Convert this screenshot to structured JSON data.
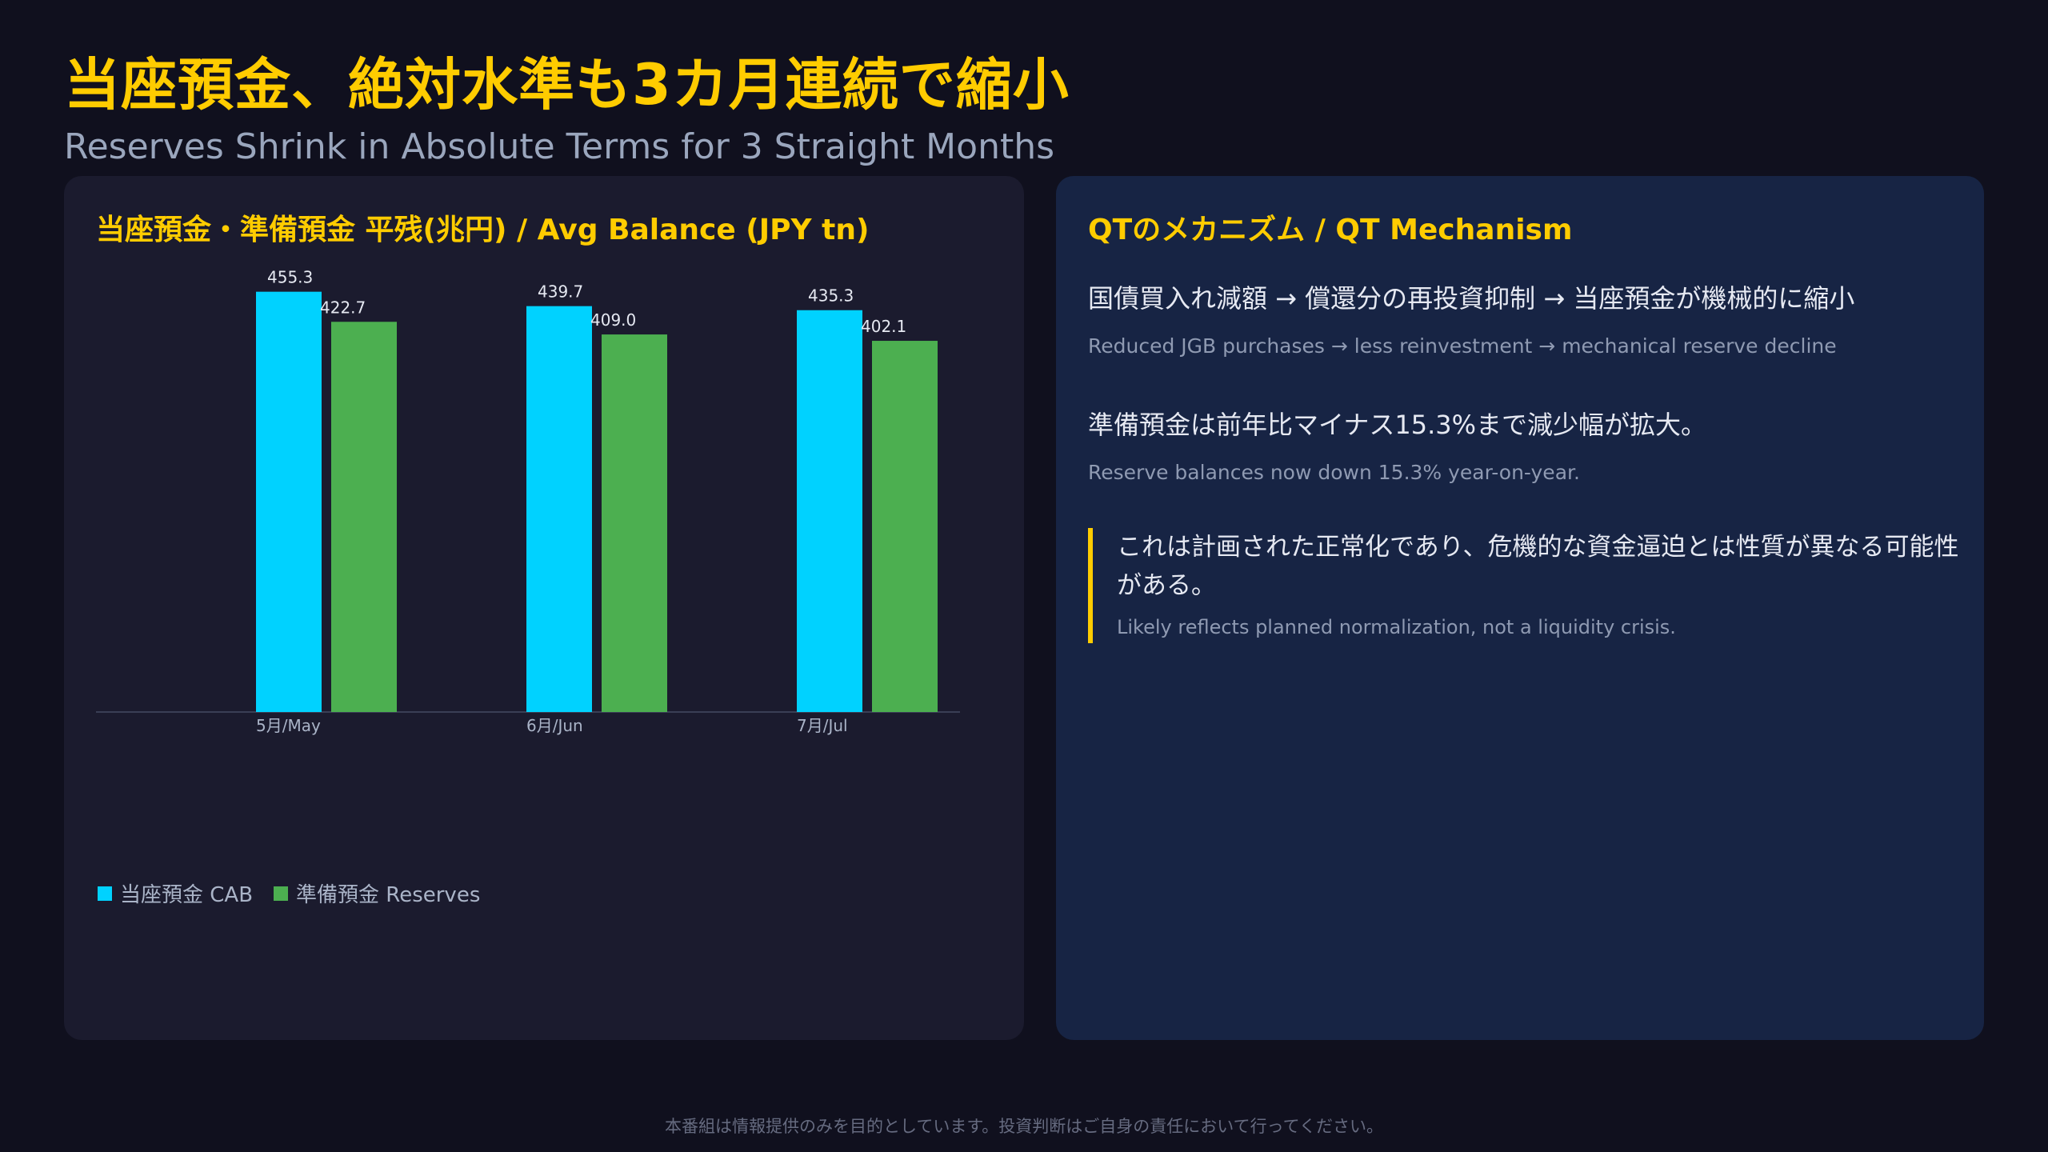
{
  "header": {
    "title": "当座預金、絶対水準も3カ月連続で縮小",
    "subtitle": "Reserves Shrink in Absolute Terms for 3 Straight Months"
  },
  "chart_panel": {
    "title": "当座預金・準備預金 平残(兆円) / Avg Balance (JPY tn)"
  },
  "chart_data": {
    "type": "bar",
    "title": "当座預金・準備預金 平残(兆円) / Avg Balance (JPY tn)",
    "categories": [
      "5月/May",
      "6月/Jun",
      "7月/Jul"
    ],
    "series": [
      {
        "name": "当座預金 CAB",
        "values": [
          455.3,
          439.7,
          435.3
        ],
        "labels": [
          "455.3",
          "439.7",
          "435.3"
        ],
        "color": "#00d2ff"
      },
      {
        "name": "準備預金 Reserves",
        "values": [
          422.7,
          409.0,
          402.1
        ],
        "labels": [
          "422.7",
          "409.0",
          "402.1"
        ],
        "color": "#4caf50"
      }
    ],
    "ylim": [
      0,
      520
    ],
    "grid": false,
    "legend_position": "bottom-left"
  },
  "mechanism": {
    "title": "QTのメカニズム / QT Mechanism",
    "item1_jp": "国債買入れ減額 → 償還分の再投資抑制 → 当座預金が機械的に縮小",
    "item1_en": "Reduced JGB purchases → less reinvestment → mechanical reserve decline",
    "item2_jp": "準備預金は前年比マイナス15.3%まで減少幅が拡大。",
    "item2_en": "Reserve balances now down 15.3% year-on-year.",
    "quote_jp": "これは計画された正常化であり、危機的な資金逼迫とは性質が異なる可能性がある。",
    "quote_en": "Likely reflects planned normalization, not a liquidity crisis."
  },
  "footer": {
    "disclaimer": "本番組は情報提供のみを目的としています。投資判断はご自身の責任において行ってください。"
  },
  "colors": {
    "accent": "#ffcc00",
    "background": "#10101e",
    "panel_left": "#1b1b2e",
    "panel_right": "#172444"
  }
}
